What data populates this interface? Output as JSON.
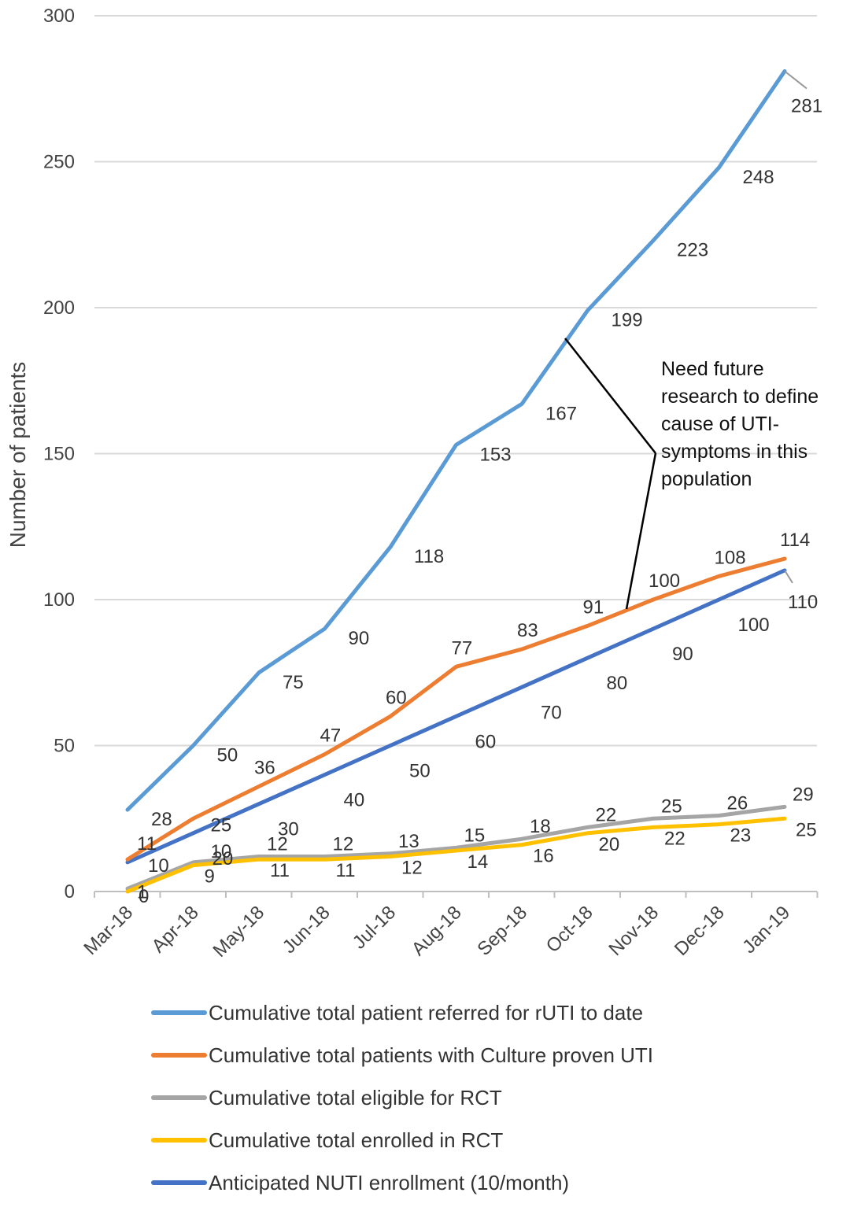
{
  "chart_data": {
    "type": "line",
    "ylabel": "Number of patients",
    "xlabel": "",
    "title": "",
    "ylim": [
      0,
      300
    ],
    "yticks": [
      "0",
      "50",
      "100",
      "150",
      "200",
      "250",
      "300"
    ],
    "categories": [
      "Mar-18",
      "Apr-18",
      "May-18",
      "Jun-18",
      "Jul-18",
      "Aug-18",
      "Sep-18",
      "Oct-18",
      "Nov-18",
      "Dec-18",
      "Jan-19"
    ],
    "grid": "horizontal",
    "legend_position": "bottom",
    "series": [
      {
        "name": "Cumulative total  patient referred for rUTI to date",
        "color": "#5B9BD5",
        "values": [
          28,
          50,
          75,
          90,
          118,
          153,
          167,
          199,
          223,
          248,
          281
        ]
      },
      {
        "name": "Cumulative total patients with Culture proven UTI",
        "color": "#ED7D31",
        "values": [
          11,
          25,
          36,
          47,
          60,
          77,
          83,
          91,
          100,
          108,
          114
        ]
      },
      {
        "name": "Cumulative total eligible for  RCT",
        "color": "#A5A5A5",
        "values": [
          1,
          10,
          12,
          12,
          13,
          15,
          18,
          22,
          25,
          26,
          29
        ]
      },
      {
        "name": "Cumulative total enrolled in RCT",
        "color": "#FFC000",
        "values": [
          0,
          9,
          11,
          11,
          12,
          14,
          16,
          20,
          22,
          23,
          25
        ]
      },
      {
        "name": "Anticipated NUTI enrollment (10/month)",
        "color": "#4472C4",
        "values": [
          10,
          20,
          30,
          40,
          50,
          60,
          70,
          80,
          90,
          100,
          110
        ]
      }
    ],
    "annotation": {
      "lines": [
        "Need future",
        "research to define",
        "cause of UTI-",
        "symptoms in this",
        "population"
      ]
    }
  }
}
